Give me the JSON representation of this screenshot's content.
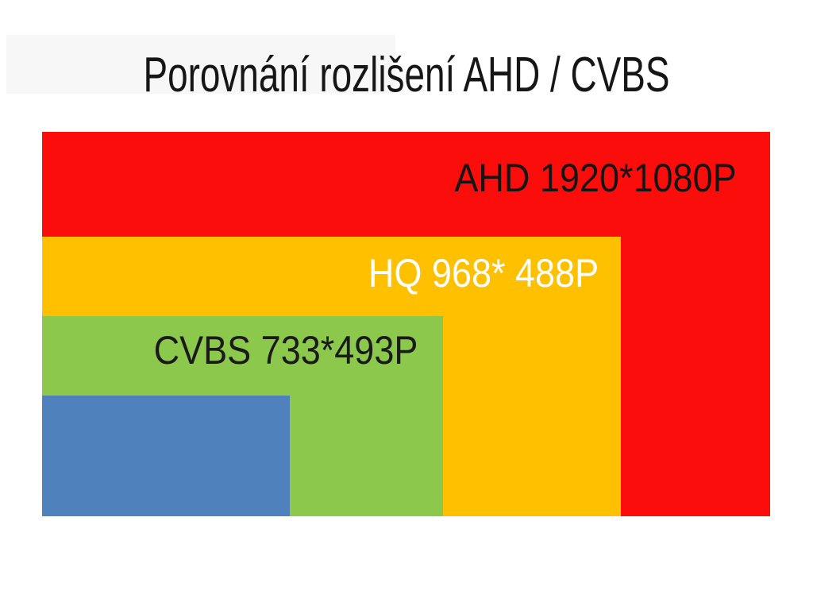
{
  "slide": {
    "background_color": "#ffffff",
    "artifact_color": "#f7f7f7"
  },
  "chart_data": {
    "type": "nested-area-comparison",
    "title": "Porovnání rozlišení AHD / CVBS",
    "legend_position": "labels-inside-rectangles",
    "items": [
      {
        "name": "AHD",
        "label": "AHD 1920*1080P",
        "resolution_width": 1920,
        "resolution_height": 1080,
        "color": "#fb0d0b",
        "label_color": "#151515"
      },
      {
        "name": "HQ",
        "label": "HQ 968* 488P",
        "resolution_width": 968,
        "resolution_height": 488,
        "color": "#ffc000",
        "label_color": "#ffffff"
      },
      {
        "name": "CVBS",
        "label": "CVBS 733*493P",
        "resolution_width": 733,
        "resolution_height": 493,
        "color": "#8cc84c",
        "label_color": "#1a1a1a"
      },
      {
        "name": "unlabeled-smallest",
        "label": "",
        "color": "#4f81bd"
      }
    ]
  }
}
